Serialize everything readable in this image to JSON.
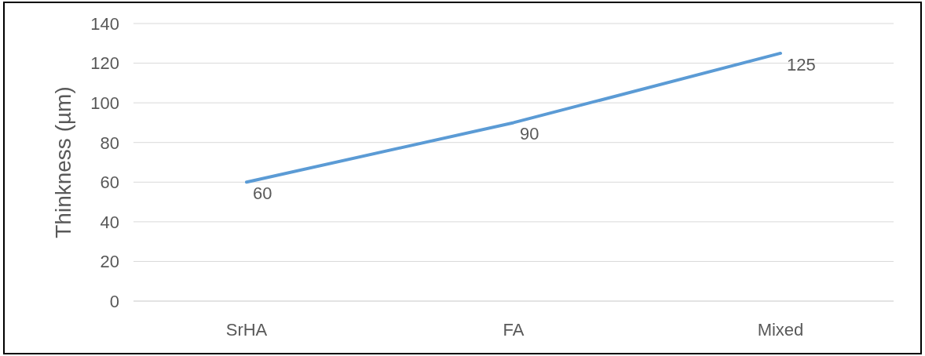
{
  "chart_data": {
    "type": "line",
    "ylabel": "Thinkness (µm)",
    "categories": [
      "SrHA",
      "FA",
      "Mixed"
    ],
    "series": [
      {
        "color": "#5b9bd5",
        "values": [
          60,
          90,
          125
        ]
      }
    ],
    "ylim": [
      0,
      140
    ],
    "yticks": [
      0,
      20,
      40,
      60,
      80,
      100,
      120,
      140
    ],
    "grid": "y",
    "data_labels": true,
    "marker": "none"
  }
}
